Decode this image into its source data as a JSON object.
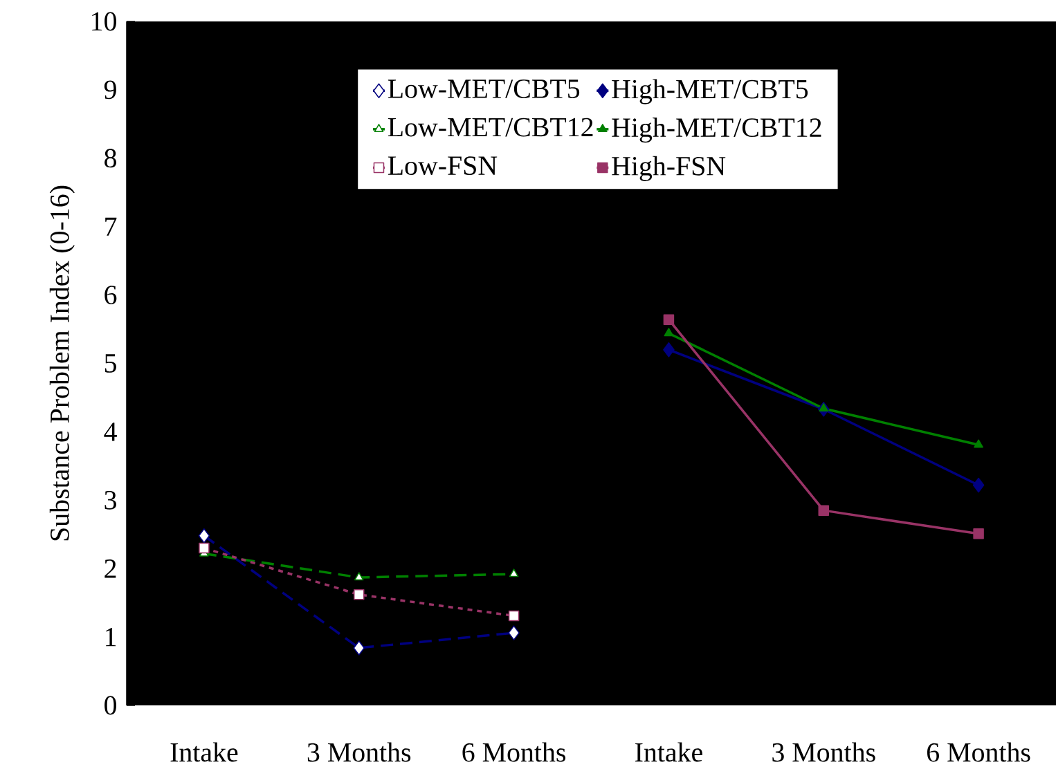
{
  "chart_data": {
    "type": "line",
    "ylabel": "Substance Problem Index (0-16)",
    "categories": [
      "Intake",
      "3 Months",
      "6 Months",
      "Intake",
      "3 Months",
      "6 Months"
    ],
    "series": [
      {
        "name": "Low-MET/CBT5",
        "color": "#000080",
        "marker": "diamond",
        "line_style": "dashed",
        "values": [
          2.48,
          0.84,
          1.06,
          null,
          null,
          null
        ]
      },
      {
        "name": "High-MET/CBT5",
        "color": "#000080",
        "marker": "diamond",
        "line_style": "solid",
        "values": [
          null,
          null,
          null,
          5.2,
          4.33,
          3.22
        ]
      },
      {
        "name": "Low-MET/CBT12",
        "color": "#008000",
        "marker": "triangle",
        "line_style": "dashed",
        "values": [
          2.22,
          1.87,
          1.92,
          null,
          null,
          null
        ]
      },
      {
        "name": "High-MET/CBT12",
        "color": "#008000",
        "marker": "triangle",
        "line_style": "solid",
        "values": [
          null,
          null,
          null,
          5.44,
          4.34,
          3.81
        ]
      },
      {
        "name": "Low-FSN",
        "color": "#993366",
        "marker": "square",
        "line_style": "dotted",
        "values": [
          2.3,
          1.62,
          1.31,
          null,
          null,
          null
        ]
      },
      {
        "name": "High-FSN",
        "color": "#993366",
        "marker": "square",
        "line_style": "solid",
        "values": [
          null,
          null,
          null,
          5.64,
          2.85,
          2.51
        ]
      }
    ],
    "ylim": [
      0,
      10
    ],
    "yticks": [
      0,
      1,
      2,
      3,
      4,
      5,
      6,
      7,
      8,
      9,
      10
    ],
    "grid": false,
    "legend": "top"
  }
}
